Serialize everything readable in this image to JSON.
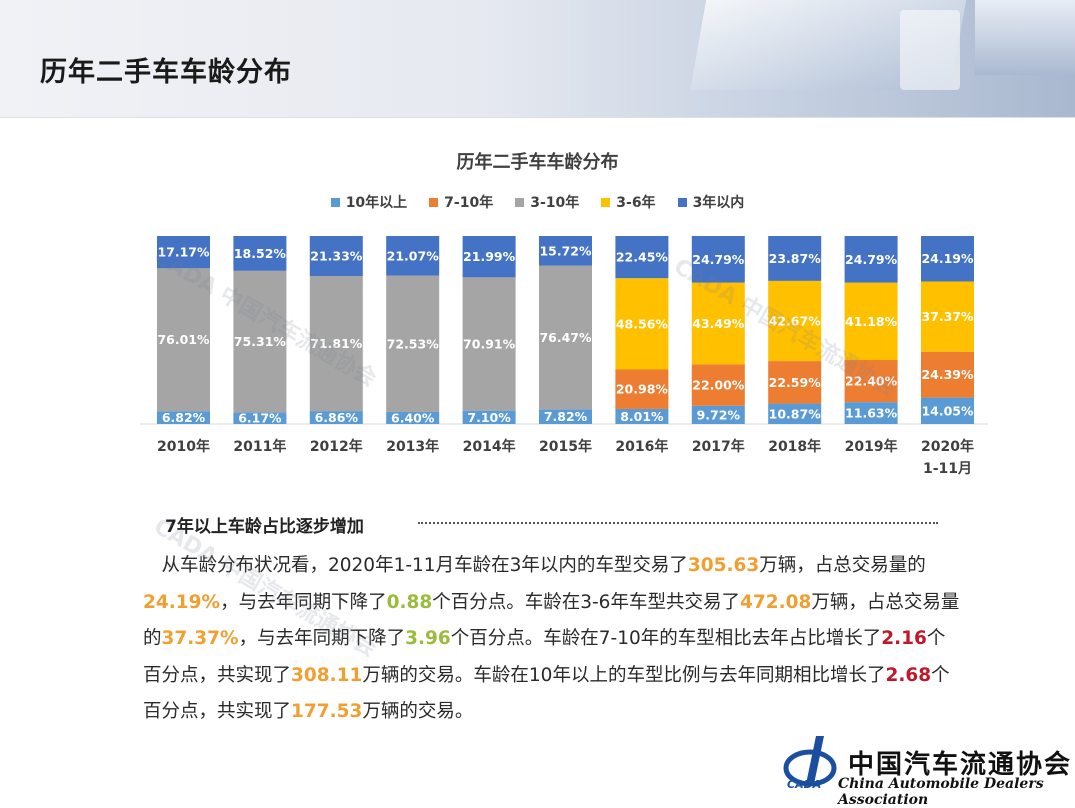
{
  "header": {
    "title": "历年二手车车龄分布"
  },
  "chart_data": {
    "type": "bar",
    "stacked": true,
    "percent_stacked": true,
    "title": "历年二手车车龄分布",
    "legend_position": "top",
    "categories": [
      "2010年",
      "2011年",
      "2012年",
      "2013年",
      "2014年",
      "2015年",
      "2016年",
      "2017年",
      "2018年",
      "2019年",
      "2020年\n1-11月"
    ],
    "series": [
      {
        "name": "10年以上",
        "color": "#5b9bd5",
        "values": [
          6.82,
          6.17,
          6.86,
          6.4,
          7.1,
          7.82,
          8.01,
          9.72,
          10.87,
          11.63,
          14.05
        ],
        "labels": [
          "6.82%",
          "6.17%",
          "6.86%",
          "6.40%",
          "7.10%",
          "7.82%",
          "8.01%",
          "9.72%",
          "10.87%",
          "11.63%",
          "14.05%"
        ]
      },
      {
        "name": "7-10年",
        "color": "#ed7d31",
        "values": [
          null,
          null,
          null,
          null,
          null,
          null,
          20.98,
          22.0,
          22.59,
          22.4,
          24.39
        ],
        "labels": [
          "",
          "",
          "",
          "",
          "",
          "",
          "20.98%",
          "22.00%",
          "22.59%",
          "22.40%",
          "24.39%"
        ]
      },
      {
        "name": "3-10年",
        "color": "#a5a5a5",
        "values": [
          76.01,
          75.31,
          71.81,
          72.53,
          70.91,
          76.47,
          null,
          null,
          null,
          null,
          null
        ],
        "labels": [
          "76.01%",
          "75.31%",
          "71.81%",
          "72.53%",
          "70.91%",
          "76.47%",
          "",
          "",
          "",
          "",
          ""
        ]
      },
      {
        "name": "3-6年",
        "color": "#ffc000",
        "values": [
          null,
          null,
          null,
          null,
          null,
          null,
          48.56,
          43.49,
          42.67,
          41.18,
          37.37
        ],
        "labels": [
          "",
          "",
          "",
          "",
          "",
          "",
          "48.56%",
          "43.49%",
          "42.67%",
          "41.18%",
          "37.37%"
        ]
      },
      {
        "name": "3年以内",
        "color": "#4472c4",
        "values": [
          17.17,
          18.52,
          21.33,
          21.07,
          21.99,
          15.72,
          22.45,
          24.79,
          23.87,
          24.79,
          24.19
        ],
        "labels": [
          "17.17%",
          "18.52%",
          "21.33%",
          "21.07%",
          "21.99%",
          "15.72%",
          "22.45%",
          "24.79%",
          "23.87%",
          "24.79%",
          "24.19%"
        ]
      }
    ]
  },
  "section": {
    "heading": "7年以上车龄占比逐步增加"
  },
  "paragraph": {
    "segments": [
      {
        "text": "从车龄分布状况看，2020年1-11月车龄在3年以内的车型交易了",
        "style": ""
      },
      {
        "text": "305.63",
        "style": "orange"
      },
      {
        "text": "万辆，占总交易量的",
        "style": ""
      },
      {
        "text": "24.19%",
        "style": "orange"
      },
      {
        "text": "，与去年同期下降了",
        "style": ""
      },
      {
        "text": "0.88",
        "style": "green"
      },
      {
        "text": "个百分点。车龄在3-6年车型共交易了",
        "style": ""
      },
      {
        "text": "472.08",
        "style": "orange"
      },
      {
        "text": "万辆，占总交易量的",
        "style": ""
      },
      {
        "text": "37.37%",
        "style": "orange"
      },
      {
        "text": "，与去年同期下降了",
        "style": ""
      },
      {
        "text": "3.96",
        "style": "green"
      },
      {
        "text": "个百分点。车龄在7-10年的车型相比去年占比增长了",
        "style": ""
      },
      {
        "text": "2.16",
        "style": "red"
      },
      {
        "text": "个百分点，共实现了",
        "style": ""
      },
      {
        "text": "308.11",
        "style": "orange"
      },
      {
        "text": "万辆的交易。车龄在10年以上的车型比例与去年同期相比增长了",
        "style": ""
      },
      {
        "text": "2.68",
        "style": "red"
      },
      {
        "text": "个百分点，共实现了",
        "style": ""
      },
      {
        "text": "177.53",
        "style": "orange"
      },
      {
        "text": "万辆的交易。",
        "style": ""
      }
    ]
  },
  "logo": {
    "name_cn": "中国汽车流通协会",
    "name_en": "China Automobile Dealers Association",
    "abbr": "CADA"
  }
}
